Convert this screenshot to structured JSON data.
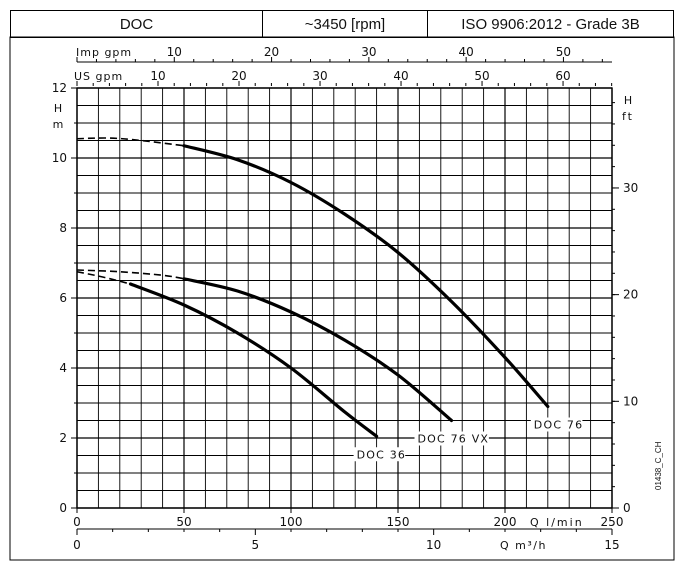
{
  "header": {
    "model": "DOC",
    "speed": "~3450 [rpm]",
    "standard": "ISO 9906:2012 - Grade 3B"
  },
  "figure_code": "01438_C_CH",
  "chart_data": {
    "type": "line",
    "title": "",
    "x_primary": {
      "label": "Q l/min",
      "range": [
        0,
        250
      ],
      "ticks": [
        0,
        50,
        100,
        150,
        200,
        250
      ]
    },
    "x_secondary_m3h": {
      "label": "Q m³/h",
      "range": [
        0,
        15
      ],
      "ticks": [
        0,
        5,
        10,
        15
      ]
    },
    "x_us_gpm": {
      "label": "US gpm",
      "ticks": [
        10,
        20,
        30,
        40,
        50,
        60
      ]
    },
    "x_imp_gpm": {
      "label": "Imp gpm",
      "ticks": [
        10,
        20,
        30,
        40,
        50
      ]
    },
    "y_left": {
      "label": "H m",
      "range": [
        0,
        12
      ],
      "ticks": [
        0,
        2,
        4,
        6,
        8,
        10,
        12
      ]
    },
    "y_right": {
      "label": "H ft",
      "ticks": [
        0,
        10,
        20,
        30
      ]
    },
    "grid": true,
    "series": [
      {
        "name": "DOC 76",
        "dashed": [
          [
            0,
            10.55
          ],
          [
            15,
            10.57
          ],
          [
            30,
            10.5
          ],
          [
            50,
            10.35
          ]
        ],
        "solid": [
          [
            50,
            10.35
          ],
          [
            75,
            9.95
          ],
          [
            100,
            9.3
          ],
          [
            125,
            8.4
          ],
          [
            150,
            7.3
          ],
          [
            175,
            5.9
          ],
          [
            200,
            4.3
          ],
          [
            220,
            2.9
          ]
        ]
      },
      {
        "name": "DOC 76 VX",
        "dashed": [
          [
            0,
            6.8
          ],
          [
            20,
            6.75
          ],
          [
            40,
            6.65
          ],
          [
            50,
            6.55
          ]
        ],
        "solid": [
          [
            50,
            6.55
          ],
          [
            75,
            6.2
          ],
          [
            100,
            5.6
          ],
          [
            125,
            4.8
          ],
          [
            150,
            3.8
          ],
          [
            175,
            2.5
          ]
        ]
      },
      {
        "name": "DOC 36",
        "dashed": [
          [
            0,
            6.75
          ],
          [
            12,
            6.6
          ],
          [
            25,
            6.4
          ]
        ],
        "solid": [
          [
            25,
            6.4
          ],
          [
            50,
            5.8
          ],
          [
            75,
            5.0
          ],
          [
            100,
            4.0
          ],
          [
            125,
            2.75
          ],
          [
            140,
            2.05
          ]
        ]
      }
    ]
  }
}
